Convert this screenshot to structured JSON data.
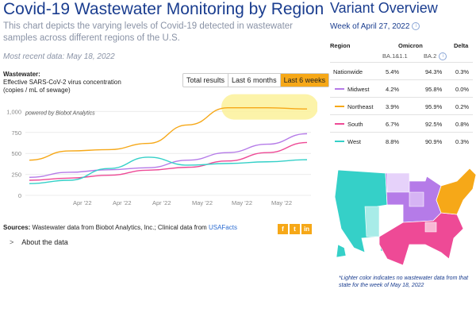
{
  "page": {
    "title": "Covid-19 Wastewater Monitoring by Region",
    "description": "This chart depicts the varying levels of Covid-19 detected in wastewater samples across different regions of the U.S.",
    "recent": "Most recent data: May 18, 2022"
  },
  "wastewater": {
    "heading": "Wastewater:",
    "line1": "Effective SARS-CoV-2 virus concentration",
    "line2": "(copies / mL of sewage)"
  },
  "range_buttons": [
    "Total results",
    "Last 6 months",
    "Last 6 weeks"
  ],
  "range_active": "Last 6 weeks",
  "chart_watermark": "powered by Biobot Analytics",
  "chart_data": {
    "type": "line",
    "title": "",
    "xlabel": "",
    "ylabel": "",
    "ylim": [
      0,
      1250
    ],
    "yticks": [
      "0",
      "250",
      "500",
      "750",
      "1,000"
    ],
    "ytick_values": [
      0,
      250,
      500,
      750,
      1000
    ],
    "xticks": [
      "Apr '22",
      "Apr '22",
      "Apr '22",
      "May '22",
      "May '22",
      "May '22"
    ],
    "xtick_positions": [
      1.3,
      2.3,
      3.3,
      4.3,
      5.3,
      6.3
    ],
    "x": [
      0,
      1,
      2,
      3,
      4,
      5,
      6,
      7
    ],
    "grid": true,
    "highlight": "last 3 points of Northeast",
    "series": [
      {
        "name": "Northeast",
        "color": "#f6a818",
        "values": [
          420,
          530,
          545,
          620,
          840,
          1045,
          1045,
          1030
        ]
      },
      {
        "name": "Midwest",
        "color": "#b57be8",
        "values": [
          215,
          275,
          305,
          330,
          420,
          510,
          610,
          735
        ]
      },
      {
        "name": "South",
        "color": "#ee4a96",
        "values": [
          180,
          205,
          240,
          300,
          335,
          410,
          510,
          630
        ]
      },
      {
        "name": "West",
        "color": "#35d0c8",
        "values": [
          140,
          180,
          320,
          455,
          360,
          380,
          400,
          425
        ]
      }
    ]
  },
  "sources": {
    "label": "Sources:",
    "text": "Wastewater data from Biobot Analytics, Inc.; Clinical data from",
    "link": "USAFacts"
  },
  "social": [
    "f",
    "t",
    "in"
  ],
  "about": {
    "chevron": ">",
    "label": "About the data"
  },
  "variant": {
    "title": "Variant Overview",
    "week": "Week of April 27, 2022",
    "info_icon": "i",
    "headers": {
      "region": "Region",
      "omicron": "Omicron",
      "delta": "Delta",
      "ba1": "BA.1&1.1",
      "ba2": "BA.2"
    },
    "rows": [
      {
        "region": "Nationwide",
        "ba1": "5.4%",
        "ba2": "94.3%",
        "delta": "0.3%",
        "color": ""
      },
      {
        "region": "Midwest",
        "ba1": "4.2%",
        "ba2": "95.8%",
        "delta": "0.0%",
        "color": "#b57be8"
      },
      {
        "region": "Northeast",
        "ba1": "3.9%",
        "ba2": "95.9%",
        "delta": "0.2%",
        "color": "#f6a818"
      },
      {
        "region": "South",
        "ba1": "6.7%",
        "ba2": "92.5%",
        "delta": "0.8%",
        "color": "#ee4a96"
      },
      {
        "region": "West",
        "ba1": "8.8%",
        "ba2": "90.9%",
        "delta": "0.3%",
        "color": "#35d0c8"
      }
    ],
    "footnote": "*Lighter color indicates no wastewater data from that state for the week of May 18, 2022"
  }
}
